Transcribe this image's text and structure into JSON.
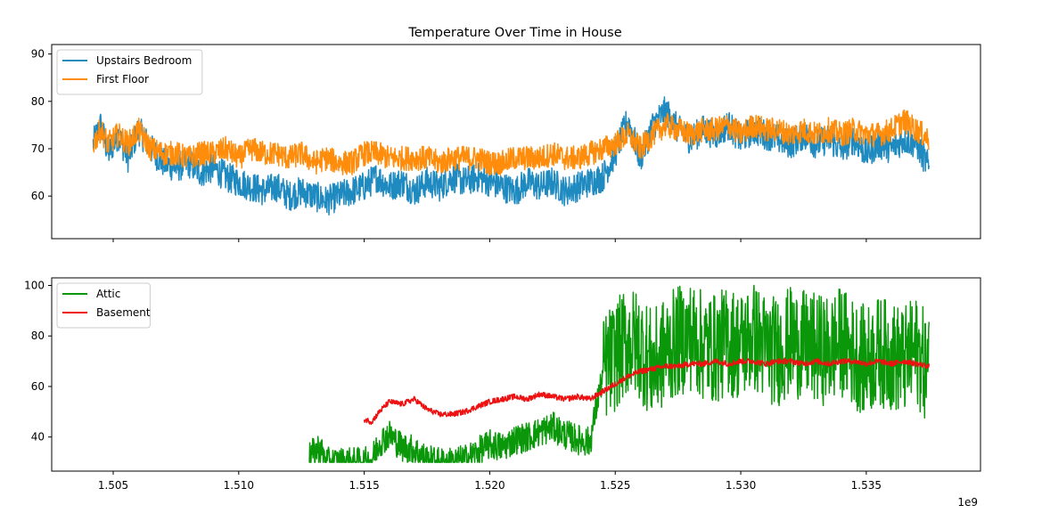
{
  "chart_data": {
    "type": "line",
    "title": "Temperature Over Time in House",
    "x_offset_label": "1e9",
    "xlim": [
      1.50255,
      1.53955
    ],
    "x_ticks": [
      1.505,
      1.51,
      1.515,
      1.52,
      1.525,
      1.53,
      1.535
    ],
    "x_tick_labels": [
      "1.505",
      "1.510",
      "1.515",
      "1.520",
      "1.525",
      "1.530",
      "1.535"
    ],
    "grid": false,
    "panels": [
      {
        "ylim": [
          51,
          92
        ],
        "y_ticks": [
          60,
          70,
          80,
          90
        ],
        "y_tick_labels": [
          "60",
          "70",
          "80",
          "90"
        ],
        "show_x_tick_labels": false,
        "legend_position": "top-left",
        "series": [
          {
            "name": "Upstairs Bedroom",
            "color": "#1f8ac0",
            "x": [
              1.5042,
              1.5045,
              1.5048,
              1.5052,
              1.5056,
              1.506,
              1.5065,
              1.507,
              1.5075,
              1.508,
              1.5085,
              1.509,
              1.5095,
              1.51,
              1.5105,
              1.511,
              1.5115,
              1.512,
              1.5125,
              1.513,
              1.5135,
              1.514,
              1.5145,
              1.515,
              1.5155,
              1.516,
              1.5165,
              1.517,
              1.5175,
              1.518,
              1.5185,
              1.519,
              1.5195,
              1.52,
              1.5205,
              1.521,
              1.5215,
              1.522,
              1.5225,
              1.523,
              1.5235,
              1.524,
              1.5245,
              1.525,
              1.5255,
              1.526,
              1.5265,
              1.527,
              1.5275,
              1.528,
              1.5285,
              1.529,
              1.5295,
              1.53,
              1.5305,
              1.531,
              1.5315,
              1.532,
              1.5325,
              1.533,
              1.5335,
              1.534,
              1.5345,
              1.535,
              1.5355,
              1.536,
              1.5365,
              1.537,
              1.5375
            ],
            "y": [
              71,
              75,
              69,
              73,
              68,
              74,
              70,
              67,
              66,
              67,
              65,
              66,
              64,
              63,
              62,
              61,
              62,
              60,
              61,
              60,
              59,
              60,
              61,
              62,
              64,
              62,
              63,
              61,
              63,
              62,
              64,
              63,
              64,
              63,
              62,
              61,
              63,
              62,
              63,
              61,
              62,
              63,
              64,
              69,
              76,
              68,
              75,
              78,
              74,
              72,
              74,
              73,
              75,
              72,
              74,
              73,
              72,
              71,
              73,
              71,
              72,
              70,
              72,
              69,
              71,
              70,
              72,
              71,
              66
            ]
          },
          {
            "name": "First Floor",
            "color": "#ff8c0a",
            "x": [
              1.5042,
              1.5045,
              1.5048,
              1.5052,
              1.5056,
              1.506,
              1.5065,
              1.507,
              1.5075,
              1.508,
              1.5085,
              1.509,
              1.5095,
              1.51,
              1.5105,
              1.511,
              1.5115,
              1.512,
              1.5125,
              1.513,
              1.5135,
              1.514,
              1.5145,
              1.515,
              1.5155,
              1.516,
              1.5165,
              1.517,
              1.5175,
              1.518,
              1.5185,
              1.519,
              1.5195,
              1.52,
              1.5205,
              1.521,
              1.5215,
              1.522,
              1.5225,
              1.523,
              1.5235,
              1.524,
              1.5245,
              1.525,
              1.5255,
              1.526,
              1.5265,
              1.527,
              1.5275,
              1.528,
              1.5285,
              1.529,
              1.5295,
              1.53,
              1.5305,
              1.531,
              1.5315,
              1.532,
              1.5325,
              1.533,
              1.5335,
              1.534,
              1.5345,
              1.535,
              1.5355,
              1.536,
              1.5365,
              1.537,
              1.5375
            ],
            "y": [
              71,
              74,
              71,
              73,
              71,
              74,
              70,
              69,
              69,
              68,
              69,
              69,
              70,
              68,
              70,
              69,
              69,
              68,
              69,
              67,
              68,
              67,
              67,
              69,
              69,
              68,
              68,
              68,
              68,
              67,
              68,
              68,
              68,
              67,
              67,
              68,
              68,
              68,
              69,
              68,
              68,
              69,
              70,
              71,
              73,
              70,
              73,
              75,
              74,
              73,
              74,
              74,
              75,
              73,
              75,
              74,
              74,
              73,
              74,
              73,
              74,
              73,
              74,
              73,
              73,
              74,
              76,
              74,
              72
            ]
          }
        ]
      },
      {
        "ylim": [
          26.5,
          103
        ],
        "y_ticks": [
          40,
          60,
          80,
          100
        ],
        "y_tick_labels": [
          "40",
          "60",
          "80",
          "100"
        ],
        "show_x_tick_labels": true,
        "legend_position": "top-left",
        "series": [
          {
            "name": "Attic",
            "color": "#0a980a",
            "x": [
              1.5128,
              1.5132,
              1.5135,
              1.514,
              1.5145,
              1.515,
              1.5153,
              1.5156,
              1.516,
              1.5165,
              1.517,
              1.5175,
              1.518,
              1.5185,
              1.519,
              1.5195,
              1.52,
              1.5205,
              1.521,
              1.5215,
              1.522,
              1.5225,
              1.523,
              1.5235,
              1.524,
              1.5243,
              1.5246,
              1.525,
              1.5255,
              1.526,
              1.5265,
              1.527,
              1.5275,
              1.528,
              1.5285,
              1.529,
              1.5295,
              1.53,
              1.5305,
              1.531,
              1.5315,
              1.532,
              1.5325,
              1.533,
              1.5335,
              1.534,
              1.5345,
              1.535,
              1.5355,
              1.536,
              1.5365,
              1.537,
              1.5375
            ],
            "y": [
              32,
              36,
              30,
              30,
              30,
              30,
              31,
              38,
              41,
              36,
              35,
              31,
              30,
              30,
              31,
              34,
              37,
              36,
              39,
              40,
              42,
              44,
              41,
              39,
              38,
              55,
              68,
              72,
              78,
              76,
              68,
              74,
              78,
              80,
              76,
              75,
              78,
              76,
              80,
              75,
              74,
              78,
              76,
              75,
              74,
              78,
              73,
              70,
              74,
              72,
              70,
              74,
              66
            ]
          },
          {
            "name": "Basement",
            "color": "#ee1111",
            "x": [
              1.515,
              1.5153,
              1.5156,
              1.516,
              1.5165,
              1.517,
              1.5175,
              1.518,
              1.5185,
              1.519,
              1.5195,
              1.52,
              1.5205,
              1.521,
              1.5215,
              1.522,
              1.5225,
              1.523,
              1.5235,
              1.524,
              1.5245,
              1.525,
              1.5255,
              1.526,
              1.5265,
              1.527,
              1.5275,
              1.528,
              1.5285,
              1.529,
              1.5295,
              1.53,
              1.5305,
              1.531,
              1.5315,
              1.532,
              1.5325,
              1.533,
              1.5335,
              1.534,
              1.5345,
              1.535,
              1.5355,
              1.536,
              1.5365,
              1.537,
              1.5375
            ],
            "y": [
              47,
              46,
              50,
              54,
              53,
              55,
              51,
              49,
              49,
              50,
              52,
              54,
              55,
              56,
              55,
              57,
              56,
              55,
              56,
              55,
              58,
              61,
              64,
              66,
              67,
              68,
              68,
              69,
              69,
              70,
              69,
              70,
              70,
              69,
              70,
              70,
              69,
              70,
              69,
              70,
              70,
              69,
              70,
              69,
              70,
              69,
              68
            ]
          }
        ]
      }
    ]
  }
}
